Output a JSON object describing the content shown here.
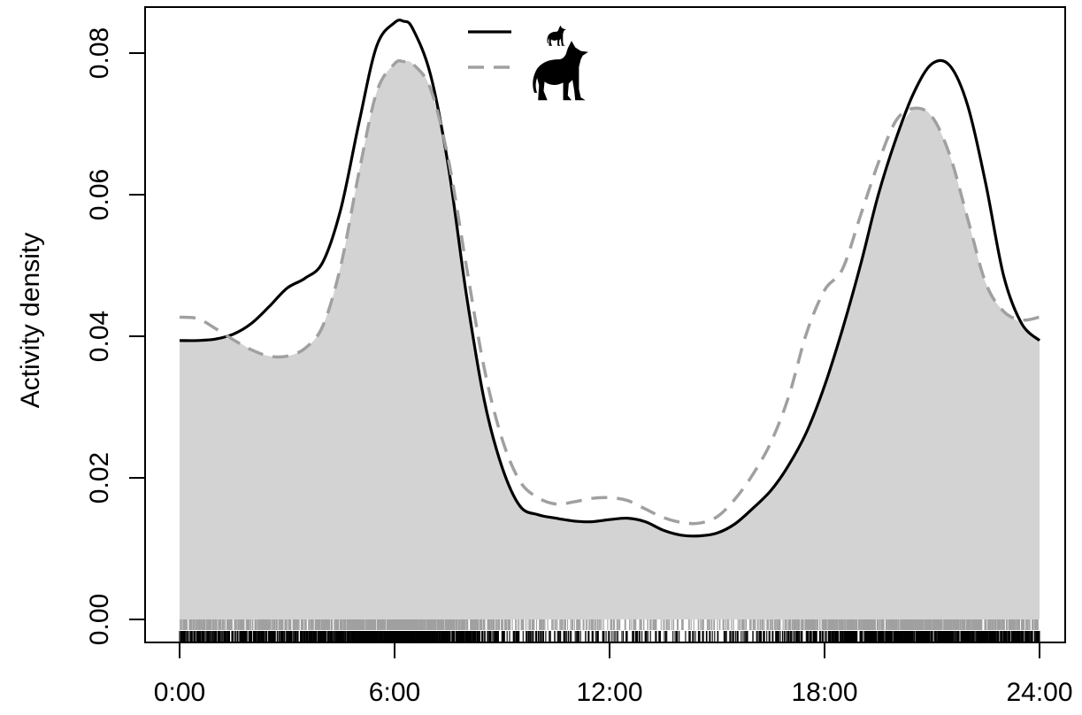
{
  "chart_data": {
    "type": "line",
    "title": "",
    "xlabel": "",
    "ylabel": "Activity density",
    "xlim": [
      0,
      24
    ],
    "ylim": [
      0,
      0.085
    ],
    "x_ticks": [
      0,
      6,
      12,
      18,
      24
    ],
    "x_tick_labels": [
      "0:00",
      "6:00",
      "12:00",
      "18:00",
      "24:00"
    ],
    "y_ticks": [
      0,
      0.02,
      0.04,
      0.06,
      0.08
    ],
    "y_tick_labels": [
      "0.00",
      "0.02",
      "0.04",
      "0.06",
      "0.08"
    ],
    "legend_position": "top-center",
    "legend_icons": [
      "small-wolf-icon",
      "large-wolf-icon"
    ],
    "overlap_fill_color": "#d3d3d3",
    "series": [
      {
        "style": "solid",
        "color": "#000000",
        "legend_icon": "small-wolf-icon",
        "x": [
          0,
          0.5,
          1,
          1.5,
          2,
          2.5,
          3,
          3.5,
          4,
          4.5,
          5,
          5.5,
          6,
          6.25,
          6.5,
          7,
          7.5,
          8,
          8.5,
          9,
          9.5,
          10,
          10.5,
          11,
          11.5,
          12,
          12.5,
          13,
          13.5,
          14,
          14.5,
          15,
          15.5,
          16,
          16.5,
          17,
          17.5,
          18,
          18.5,
          19,
          19.5,
          20,
          20.5,
          21,
          21.5,
          22,
          22.5,
          23,
          23.5,
          24
        ],
        "y": [
          0.0394,
          0.0394,
          0.0396,
          0.0403,
          0.0418,
          0.0442,
          0.0468,
          0.0482,
          0.0505,
          0.058,
          0.07,
          0.081,
          0.0843,
          0.0845,
          0.0835,
          0.077,
          0.064,
          0.046,
          0.031,
          0.0215,
          0.016,
          0.0148,
          0.0143,
          0.0139,
          0.0138,
          0.0141,
          0.0143,
          0.0138,
          0.0126,
          0.0119,
          0.0118,
          0.0122,
          0.0135,
          0.0157,
          0.0182,
          0.0218,
          0.0265,
          0.033,
          0.041,
          0.05,
          0.06,
          0.068,
          0.0745,
          0.0785,
          0.0782,
          0.0725,
          0.0615,
          0.0485,
          0.0418,
          0.0394
        ]
      },
      {
        "style": "dashed",
        "color": "#a0a0a0",
        "legend_icon": "large-wolf-icon",
        "x": [
          0,
          0.5,
          1,
          1.5,
          2,
          2.5,
          3,
          3.5,
          4,
          4.5,
          5,
          5.5,
          6,
          6.25,
          6.5,
          7,
          7.5,
          8,
          8.5,
          9,
          9.5,
          10,
          10.5,
          11,
          11.5,
          12,
          12.5,
          13,
          13.5,
          14,
          14.5,
          15,
          15.5,
          16,
          16.5,
          17,
          17.5,
          18,
          18.5,
          19,
          19.5,
          20,
          20.5,
          21,
          21.5,
          22,
          22.5,
          23,
          23.5,
          24
        ],
        "y": [
          0.0427,
          0.0425,
          0.0411,
          0.0395,
          0.0381,
          0.0372,
          0.0372,
          0.0383,
          0.0415,
          0.05,
          0.063,
          0.0745,
          0.0785,
          0.0788,
          0.0785,
          0.075,
          0.065,
          0.05,
          0.0355,
          0.0255,
          0.0195,
          0.0172,
          0.0163,
          0.0166,
          0.0171,
          0.0172,
          0.0168,
          0.0156,
          0.0144,
          0.0137,
          0.0136,
          0.0145,
          0.017,
          0.0205,
          0.025,
          0.0315,
          0.0405,
          0.0465,
          0.0495,
          0.057,
          0.0645,
          0.0705,
          0.0722,
          0.071,
          0.0655,
          0.0565,
          0.0475,
          0.0435,
          0.0423,
          0.0427
        ]
      }
    ]
  }
}
